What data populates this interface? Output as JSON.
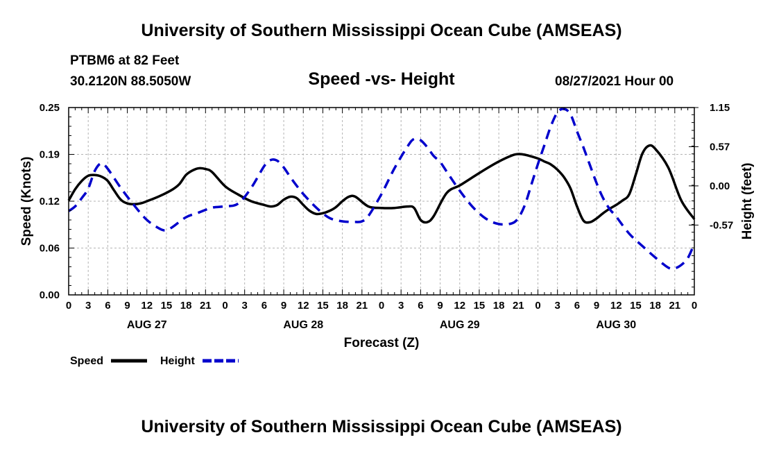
{
  "header": {
    "top_title": "University of Southern Mississippi Ocean Cube (AMSEAS)",
    "bottom_title": "University of Southern Mississippi Ocean Cube (AMSEAS)",
    "station": "PTBM6 at 82 Feet",
    "location": "30.2120N  88.5050W",
    "subtitle": "Speed -vs- Height",
    "datetime": "08/27/2021 Hour 00"
  },
  "chart_data": {
    "type": "line",
    "title": "Speed -vs- Height",
    "xlabel": "Forecast (Z)",
    "ylabel_left": "Speed (Knots)",
    "ylabel_right": "Height (feet)",
    "ylim_left": [
      0,
      0.25
    ],
    "ylim_right": [
      -1.6,
      1.15
    ],
    "yticks_left": [
      "0.00",
      "0.06",
      "0.12",
      "0.19",
      "0.25"
    ],
    "yticks_left_values": [
      0,
      0.0625,
      0.125,
      0.1875,
      0.25
    ],
    "yticks_right": [
      "-0.57",
      "0.00",
      "0.57",
      "1.15"
    ],
    "yticks_right_values": [
      -0.575,
      0,
      0.575,
      1.15
    ],
    "xlim": [
      0,
      96
    ],
    "x_tick_labels": [
      "0",
      "3",
      "6",
      "9",
      "12",
      "15",
      "18",
      "21",
      "0",
      "3",
      "6",
      "9",
      "12",
      "15",
      "18",
      "21",
      "0",
      "3",
      "6",
      "9",
      "12",
      "15",
      "18",
      "21",
      "0",
      "3",
      "6",
      "9",
      "12",
      "15",
      "18",
      "21",
      "0"
    ],
    "day_labels": [
      {
        "hour": 12,
        "label": "AUG 27"
      },
      {
        "hour": 36,
        "label": "AUG 28"
      },
      {
        "hour": 60,
        "label": "AUG 29"
      },
      {
        "hour": 84,
        "label": "AUG 30"
      }
    ],
    "grid": true,
    "series": [
      {
        "name": "Speed",
        "axis": "left",
        "color": "#000000",
        "dash": "solid",
        "x": [
          0,
          1,
          2,
          3,
          4,
          5,
          6,
          7,
          8,
          9,
          10,
          11,
          12,
          14,
          16,
          17,
          18,
          19,
          20,
          21,
          22,
          24,
          26,
          28,
          30,
          31,
          32,
          33,
          34,
          35,
          36,
          37,
          38,
          39,
          40,
          41,
          42,
          43,
          44,
          46,
          48,
          50,
          52,
          53,
          54,
          55,
          56,
          58,
          60,
          62,
          64,
          66,
          68,
          69,
          70,
          72,
          73,
          74,
          75,
          76,
          77,
          78,
          79,
          80,
          81,
          82,
          83,
          84,
          85,
          86,
          87,
          88,
          89,
          90,
          92,
          94,
          96
        ],
        "values": [
          0.126,
          0.141,
          0.152,
          0.159,
          0.16,
          0.158,
          0.152,
          0.139,
          0.127,
          0.122,
          0.121,
          0.122,
          0.125,
          0.132,
          0.141,
          0.148,
          0.16,
          0.166,
          0.169,
          0.168,
          0.164,
          0.145,
          0.134,
          0.125,
          0.12,
          0.118,
          0.12,
          0.127,
          0.131,
          0.129,
          0.12,
          0.112,
          0.108,
          0.109,
          0.112,
          0.117,
          0.125,
          0.131,
          0.131,
          0.118,
          0.116,
          0.116,
          0.118,
          0.116,
          0.1,
          0.097,
          0.105,
          0.136,
          0.146,
          0.157,
          0.168,
          0.178,
          0.186,
          0.188,
          0.187,
          0.182,
          0.178,
          0.174,
          0.167,
          0.157,
          0.142,
          0.118,
          0.099,
          0.097,
          0.102,
          0.109,
          0.115,
          0.12,
          0.126,
          0.134,
          0.16,
          0.188,
          0.199,
          0.195,
          0.17,
          0.126,
          0.101
        ]
      },
      {
        "name": "Height",
        "axis": "right",
        "color": "#0000cc",
        "dash": "dashed",
        "x": [
          0,
          1,
          2,
          3,
          4,
          5,
          6,
          8,
          10,
          12,
          14,
          15,
          16,
          18,
          20,
          22,
          24,
          26,
          28,
          30,
          31,
          32,
          33,
          34,
          35,
          36,
          38,
          40,
          42,
          44,
          45,
          46,
          48,
          50,
          52,
          53,
          54,
          55,
          56,
          57,
          58,
          60,
          62,
          64,
          66,
          68,
          69,
          70,
          71,
          72,
          73,
          74,
          75,
          76,
          77,
          78,
          79,
          80,
          81,
          82,
          83,
          84,
          86,
          88,
          90,
          92,
          93,
          94,
          95,
          96
        ],
        "values": [
          -0.37,
          -0.3,
          -0.18,
          -0.04,
          0.22,
          0.33,
          0.25,
          -0.03,
          -0.28,
          -0.5,
          -0.63,
          -0.65,
          -0.6,
          -0.46,
          -0.39,
          -0.32,
          -0.3,
          -0.26,
          -0.03,
          0.29,
          0.38,
          0.37,
          0.27,
          0.13,
          0.0,
          -0.12,
          -0.32,
          -0.47,
          -0.52,
          -0.53,
          -0.52,
          -0.44,
          -0.12,
          0.26,
          0.58,
          0.69,
          0.67,
          0.57,
          0.44,
          0.35,
          0.21,
          -0.07,
          -0.31,
          -0.48,
          -0.56,
          -0.55,
          -0.47,
          -0.28,
          0.02,
          0.32,
          0.6,
          0.88,
          1.08,
          1.13,
          1.05,
          0.8,
          0.56,
          0.3,
          0.04,
          -0.18,
          -0.34,
          -0.45,
          -0.7,
          -0.88,
          -1.05,
          -1.2,
          -1.21,
          -1.16,
          -1.06,
          -0.85
        ]
      }
    ],
    "legend": [
      {
        "label": "Speed",
        "color": "#000000",
        "dash": "solid"
      },
      {
        "label": "Height",
        "color": "#0000cc",
        "dash": "dashed"
      }
    ],
    "legend_position": "bottom-left"
  }
}
